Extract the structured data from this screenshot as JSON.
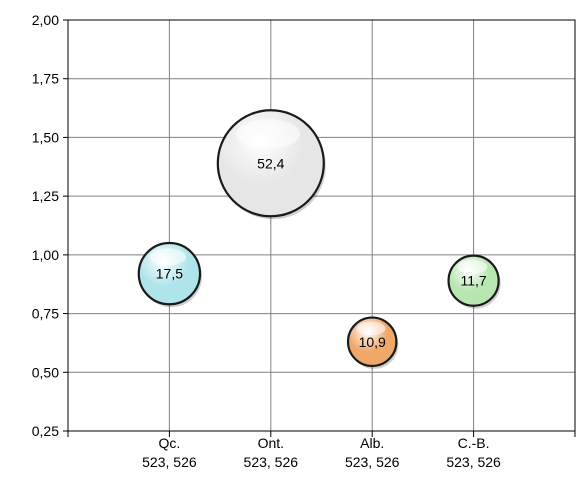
{
  "chart_data": {
    "type": "bubble",
    "categories": [
      "Qc.",
      "Ont.",
      "Alb.",
      "C.-B."
    ],
    "category_sublabels": [
      "523, 526",
      "523, 526",
      "523, 526",
      "523, 526"
    ],
    "points": [
      {
        "category": "Qc.",
        "y": 0.92,
        "size": 17.5,
        "label": "17,5",
        "color": "#aee4ea"
      },
      {
        "category": "Ont.",
        "y": 1.39,
        "size": 52.4,
        "label": "52,4",
        "color": "#e6e6e6"
      },
      {
        "category": "Alb.",
        "y": 0.63,
        "size": 10.9,
        "label": "10,9",
        "color": "#efa76a"
      },
      {
        "category": "C.-B.",
        "y": 0.89,
        "size": 11.7,
        "label": "11,7",
        "color": "#b8e6b0"
      }
    ],
    "y_ticks": [
      "0,25",
      "0,50",
      "0,75",
      "1,00",
      "1,25",
      "1,50",
      "1,75",
      "2,00"
    ],
    "ylim": [
      0.25,
      2.0
    ],
    "grid": true,
    "title": "",
    "xlabel": "",
    "ylabel": ""
  }
}
